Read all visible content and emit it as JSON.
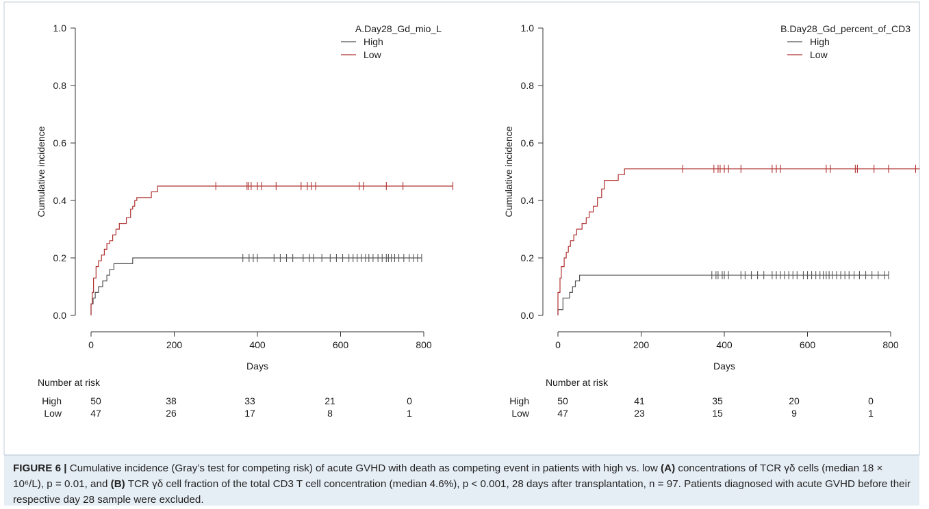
{
  "chart_data": [
    {
      "type": "line",
      "title": "A.Day28_Gd_mio_L",
      "xlabel": "Days",
      "ylabel": "Cumulative incidence",
      "xlim": [
        0,
        870
      ],
      "ylim": [
        0,
        1.0
      ],
      "x_ticks": [
        0,
        200,
        400,
        600,
        800
      ],
      "y_ticks": [
        "0.0",
        "0.2",
        "0.4",
        "0.6",
        "0.8",
        "1.0"
      ],
      "legend_position": "top-right",
      "step": true,
      "series": [
        {
          "name": "High",
          "color": "#555555",
          "points": [
            [
              0,
              0
            ],
            [
              0,
              0.04
            ],
            [
              5,
              0.04
            ],
            [
              5,
              0.06
            ],
            [
              10,
              0.06
            ],
            [
              10,
              0.08
            ],
            [
              18,
              0.08
            ],
            [
              18,
              0.1
            ],
            [
              28,
              0.1
            ],
            [
              28,
              0.12
            ],
            [
              38,
              0.12
            ],
            [
              38,
              0.14
            ],
            [
              45,
              0.14
            ],
            [
              45,
              0.16
            ],
            [
              55,
              0.16
            ],
            [
              55,
              0.18
            ],
            [
              100,
              0.18
            ],
            [
              100,
              0.2
            ],
            [
              795,
              0.2
            ]
          ],
          "censor_x": [
            365,
            380,
            390,
            400,
            440,
            455,
            470,
            485,
            510,
            525,
            535,
            555,
            575,
            590,
            605,
            620,
            630,
            640,
            650,
            660,
            668,
            678,
            690,
            700,
            710,
            715,
            722,
            730,
            740,
            752,
            765,
            775,
            785,
            795
          ]
        },
        {
          "name": "Low",
          "color": "#b03030",
          "points": [
            [
              0,
              0
            ],
            [
              0,
              0.04
            ],
            [
              3,
              0.04
            ],
            [
              3,
              0.08
            ],
            [
              6,
              0.08
            ],
            [
              6,
              0.13
            ],
            [
              12,
              0.13
            ],
            [
              12,
              0.17
            ],
            [
              18,
              0.17
            ],
            [
              18,
              0.19
            ],
            [
              25,
              0.19
            ],
            [
              25,
              0.21
            ],
            [
              32,
              0.21
            ],
            [
              32,
              0.23
            ],
            [
              38,
              0.23
            ],
            [
              38,
              0.25
            ],
            [
              45,
              0.25
            ],
            [
              45,
              0.26
            ],
            [
              52,
              0.26
            ],
            [
              52,
              0.28
            ],
            [
              60,
              0.28
            ],
            [
              60,
              0.3
            ],
            [
              68,
              0.3
            ],
            [
              68,
              0.32
            ],
            [
              85,
              0.32
            ],
            [
              85,
              0.34
            ],
            [
              95,
              0.34
            ],
            [
              95,
              0.37
            ],
            [
              100,
              0.37
            ],
            [
              100,
              0.38
            ],
            [
              105,
              0.38
            ],
            [
              105,
              0.4
            ],
            [
              110,
              0.4
            ],
            [
              110,
              0.41
            ],
            [
              145,
              0.41
            ],
            [
              145,
              0.43
            ],
            [
              160,
              0.43
            ],
            [
              160,
              0.45
            ],
            [
              870,
              0.45
            ]
          ],
          "censor_x": [
            300,
            375,
            378,
            385,
            400,
            410,
            445,
            505,
            520,
            530,
            540,
            645,
            655,
            710,
            750,
            870
          ]
        }
      ],
      "risk_table": {
        "title": "Number at risk",
        "rows": [
          {
            "label": "High",
            "values": [
              "50",
              "38",
              "33",
              "21",
              "0"
            ]
          },
          {
            "label": "Low",
            "values": [
              "47",
              "26",
              "17",
              "8",
              "1"
            ]
          }
        ]
      }
    },
    {
      "type": "line",
      "title": "B.Day28_Gd_percent_of_CD3",
      "xlabel": "Days",
      "ylabel": "Cumulative incidence",
      "xlim": [
        0,
        870
      ],
      "ylim": [
        0,
        1.0
      ],
      "x_ticks": [
        0,
        200,
        400,
        600,
        800
      ],
      "y_ticks": [
        "0.0",
        "0.2",
        "0.4",
        "0.6",
        "0.8",
        "1.0"
      ],
      "legend_position": "top-right",
      "step": true,
      "series": [
        {
          "name": "High",
          "color": "#555555",
          "points": [
            [
              0,
              0
            ],
            [
              0,
              0.02
            ],
            [
              12,
              0.02
            ],
            [
              12,
              0.06
            ],
            [
              28,
              0.06
            ],
            [
              28,
              0.08
            ],
            [
              35,
              0.08
            ],
            [
              35,
              0.1
            ],
            [
              42,
              0.1
            ],
            [
              42,
              0.12
            ],
            [
              52,
              0.12
            ],
            [
              52,
              0.14
            ],
            [
              795,
              0.14
            ]
          ],
          "censor_x": [
            370,
            380,
            385,
            395,
            400,
            410,
            440,
            450,
            465,
            480,
            495,
            515,
            525,
            535,
            545,
            555,
            565,
            575,
            590,
            600,
            610,
            620,
            630,
            638,
            645,
            652,
            660,
            670,
            680,
            690,
            700,
            712,
            725,
            740,
            755,
            770,
            785,
            795
          ]
        },
        {
          "name": "Low",
          "color": "#b03030",
          "points": [
            [
              0,
              0
            ],
            [
              0,
              0.08
            ],
            [
              5,
              0.08
            ],
            [
              5,
              0.13
            ],
            [
              8,
              0.13
            ],
            [
              8,
              0.17
            ],
            [
              15,
              0.17
            ],
            [
              15,
              0.2
            ],
            [
              20,
              0.2
            ],
            [
              20,
              0.22
            ],
            [
              25,
              0.22
            ],
            [
              25,
              0.24
            ],
            [
              30,
              0.24
            ],
            [
              30,
              0.26
            ],
            [
              38,
              0.26
            ],
            [
              38,
              0.28
            ],
            [
              45,
              0.28
            ],
            [
              45,
              0.3
            ],
            [
              58,
              0.3
            ],
            [
              58,
              0.32
            ],
            [
              68,
              0.32
            ],
            [
              68,
              0.34
            ],
            [
              75,
              0.34
            ],
            [
              75,
              0.36
            ],
            [
              85,
              0.36
            ],
            [
              85,
              0.38
            ],
            [
              95,
              0.38
            ],
            [
              95,
              0.41
            ],
            [
              105,
              0.41
            ],
            [
              105,
              0.44
            ],
            [
              112,
              0.44
            ],
            [
              112,
              0.47
            ],
            [
              145,
              0.47
            ],
            [
              145,
              0.49
            ],
            [
              160,
              0.49
            ],
            [
              160,
              0.51
            ],
            [
              870,
              0.51
            ]
          ],
          "censor_x": [
            300,
            375,
            385,
            390,
            400,
            410,
            440,
            515,
            525,
            535,
            645,
            655,
            715,
            720,
            760,
            795,
            860
          ]
        }
      ],
      "risk_table": {
        "title": "Number at risk",
        "rows": [
          {
            "label": "High",
            "values": [
              "50",
              "41",
              "35",
              "20",
              "0"
            ]
          },
          {
            "label": "Low",
            "values": [
              "47",
              "23",
              "15",
              "9",
              "1"
            ]
          }
        ]
      }
    }
  ],
  "caption": {
    "label": "FIGURE 6 |",
    "text_1": "Cumulative incidence (Gray’s test for competing risk) of acute GVHD with death as competing event in patients with high vs. low",
    "ref_a": "(A)",
    "text_2": "concentrations of TCR γδ cells (median 18 × 10⁶/L), p = 0.01, and",
    "ref_b": "(B)",
    "text_3": "TCR γδ cell fraction of the total CD3 T cell concentration (median 4.6%), p < 0.001, 28 days after transplantation, n = 97. Patients diagnosed with acute GVHD before their respective day 28 sample were excluded."
  }
}
